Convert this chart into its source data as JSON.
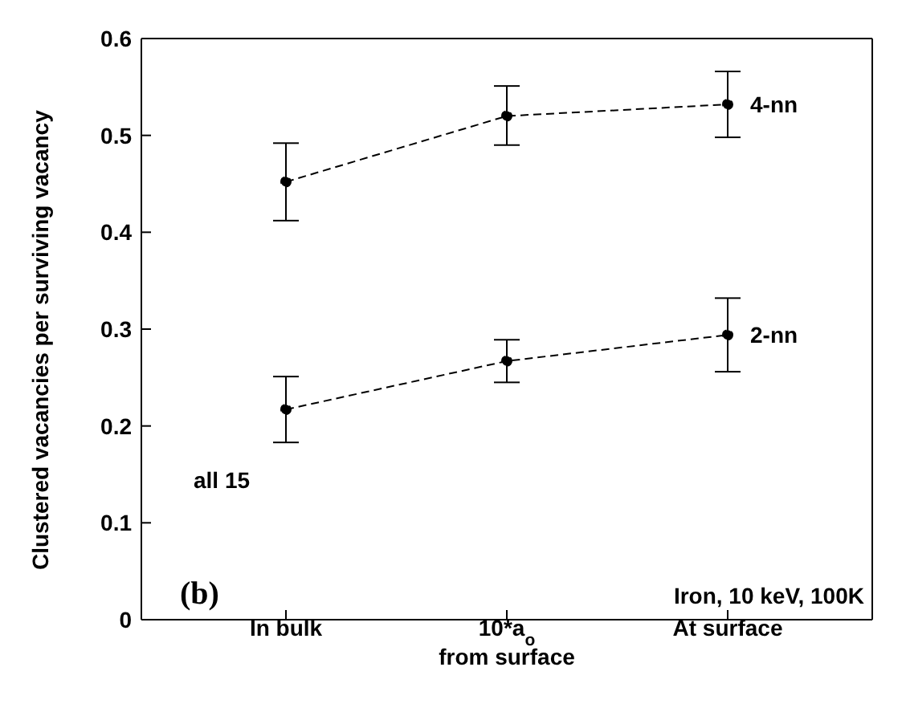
{
  "chart_data": {
    "type": "line",
    "ylabel": "Clustered vacancies per surviving vacancy",
    "categories": [
      "In bulk",
      "10*a$_{o}$\nfrom surface",
      "At surface"
    ],
    "series": [
      {
        "name": "4-nn",
        "color": "#000000",
        "values": [
          0.452,
          0.52,
          0.532
        ],
        "errors": [
          [
            0.412,
            0.492
          ],
          [
            0.49,
            0.551
          ],
          [
            0.498,
            0.566
          ]
        ]
      },
      {
        "name": "2-nn",
        "color": "#000000",
        "values": [
          0.217,
          0.267,
          0.294
        ],
        "errors": [
          [
            0.183,
            0.251
          ],
          [
            0.245,
            0.289
          ],
          [
            0.256,
            0.332
          ]
        ]
      }
    ],
    "ylim": [
      0,
      0.6
    ],
    "yticks": [
      0,
      0.1,
      0.2,
      0.3,
      0.4,
      0.5,
      0.6
    ],
    "marker": "circle",
    "line_style": "dashed",
    "annotations": [
      "all 15",
      "(b)",
      "Iron, 10 keV, 100K"
    ]
  }
}
